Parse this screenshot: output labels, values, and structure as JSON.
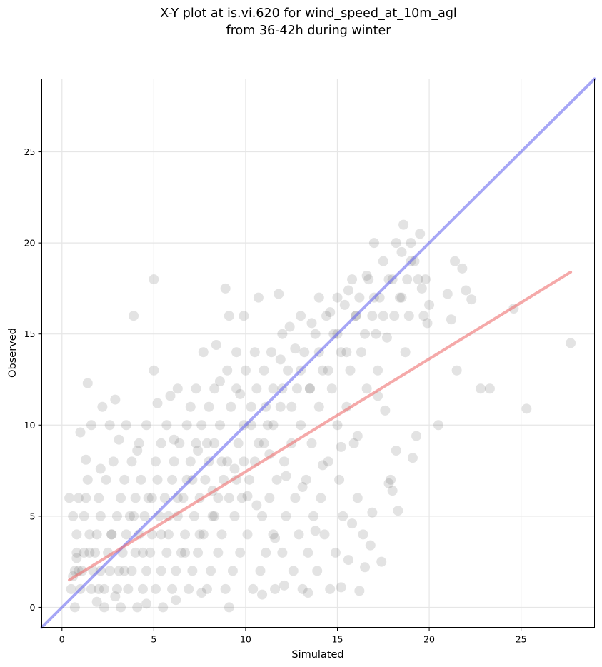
{
  "chart_data": {
    "type": "scatter",
    "title": "X-Y plot at is.vi.620 for wind_speed_at_10m_agl",
    "subtitle": "from 36-42h during winter",
    "xlabel": "Simulated",
    "ylabel": "Observed",
    "xlim": [
      -1.1,
      29
    ],
    "ylim": [
      -1.1,
      29
    ],
    "xticks": [
      0,
      5,
      10,
      15,
      20,
      25
    ],
    "yticks": [
      0,
      5,
      10,
      15,
      20,
      25
    ],
    "grid": true,
    "colors": {
      "points": "#444444",
      "identity_line": "#6a6af0",
      "fit_line": "#ee7070",
      "grid": "#e6e6e6"
    },
    "reference_lines": [
      {
        "kind": "identity",
        "x": [
          -1.1,
          29
        ],
        "y": [
          -1.1,
          29
        ]
      },
      {
        "kind": "fit",
        "x": [
          0.4,
          27.7
        ],
        "y": [
          1.5,
          18.4
        ]
      }
    ],
    "points": [
      [
        0.4,
        6
      ],
      [
        0.5,
        1
      ],
      [
        0.6,
        5
      ],
      [
        0.7,
        2
      ],
      [
        0.7,
        0
      ],
      [
        0.8,
        4
      ],
      [
        0.8,
        3
      ],
      [
        0.9,
        6
      ],
      [
        1.0,
        1
      ],
      [
        1.0,
        9.6
      ],
      [
        1.1,
        2
      ],
      [
        1.2,
        3
      ],
      [
        1.2,
        5
      ],
      [
        1.3,
        6
      ],
      [
        1.4,
        7
      ],
      [
        1.4,
        12.3
      ],
      [
        1.5,
        4
      ],
      [
        1.6,
        1
      ],
      [
        1.6,
        10
      ],
      [
        1.7,
        2
      ],
      [
        1.8,
        3
      ],
      [
        1.9,
        4
      ],
      [
        2.0,
        6
      ],
      [
        2.1,
        2
      ],
      [
        2.1,
        5
      ],
      [
        2.2,
        11
      ],
      [
        2.3,
        1
      ],
      [
        2.3,
        0
      ],
      [
        2.4,
        7
      ],
      [
        2.5,
        3
      ],
      [
        2.6,
        2
      ],
      [
        2.6,
        10
      ],
      [
        2.7,
        4
      ],
      [
        2.8,
        8
      ],
      [
        2.9,
        11.4
      ],
      [
        3.0,
        1
      ],
      [
        3.0,
        5
      ],
      [
        3.1,
        2
      ],
      [
        3.2,
        6
      ],
      [
        3.2,
        0
      ],
      [
        3.3,
        3
      ],
      [
        3.4,
        7
      ],
      [
        3.5,
        4
      ],
      [
        3.5,
        10
      ],
      [
        3.6,
        1
      ],
      [
        3.7,
        5
      ],
      [
        3.8,
        2
      ],
      [
        3.8,
        8
      ],
      [
        3.9,
        16
      ],
      [
        4.0,
        3
      ],
      [
        4.0,
        6
      ],
      [
        4.1,
        0
      ],
      [
        4.2,
        9
      ],
      [
        4.2,
        4
      ],
      [
        4.3,
        7
      ],
      [
        4.4,
        1
      ],
      [
        4.5,
        5
      ],
      [
        4.6,
        2
      ],
      [
        4.6,
        10
      ],
      [
        4.7,
        6
      ],
      [
        4.8,
        3
      ],
      [
        4.9,
        4
      ],
      [
        5.0,
        18
      ],
      [
        5.0,
        13
      ],
      [
        5.1,
        8
      ],
      [
        5.1,
        1
      ],
      [
        5.2,
        7
      ],
      [
        5.3,
        5
      ],
      [
        5.4,
        2
      ],
      [
        5.4,
        9
      ],
      [
        5.5,
        0
      ],
      [
        5.6,
        6
      ],
      [
        5.7,
        3
      ],
      [
        5.7,
        10
      ],
      [
        5.8,
        4
      ],
      [
        5.9,
        11.6
      ],
      [
        6.0,
        7
      ],
      [
        6.0,
        1
      ],
      [
        6.1,
        8
      ],
      [
        6.2,
        2
      ],
      [
        6.3,
        5
      ],
      [
        6.3,
        12
      ],
      [
        6.4,
        9
      ],
      [
        6.5,
        3
      ],
      [
        6.6,
        6
      ],
      [
        6.7,
        4
      ],
      [
        6.8,
        10
      ],
      [
        6.8,
        7
      ],
      [
        6.9,
        1
      ],
      [
        7.0,
        8
      ],
      [
        7.0,
        11
      ],
      [
        7.1,
        2
      ],
      [
        7.2,
        5
      ],
      [
        7.3,
        9
      ],
      [
        7.3,
        12
      ],
      [
        7.4,
        3
      ],
      [
        7.5,
        6
      ],
      [
        7.6,
        10
      ],
      [
        7.7,
        4
      ],
      [
        7.7,
        14
      ],
      [
        7.8,
        7
      ],
      [
        7.9,
        1
      ],
      [
        8.0,
        8
      ],
      [
        8.0,
        11
      ],
      [
        8.1,
        2
      ],
      [
        8.2,
        5
      ],
      [
        8.3,
        12
      ],
      [
        8.3,
        9
      ],
      [
        8.4,
        14.4
      ],
      [
        8.5,
        3
      ],
      [
        8.5,
        6
      ],
      [
        8.6,
        10
      ],
      [
        8.7,
        4
      ],
      [
        8.8,
        7
      ],
      [
        8.9,
        17.5
      ],
      [
        8.9,
        1
      ],
      [
        9.0,
        13
      ],
      [
        9.0,
        8
      ],
      [
        9.1,
        16
      ],
      [
        9.1,
        0
      ],
      [
        9.2,
        11
      ],
      [
        9.3,
        2
      ],
      [
        9.4,
        5
      ],
      [
        9.5,
        12
      ],
      [
        9.5,
        14
      ],
      [
        9.6,
        9
      ],
      [
        9.7,
        3
      ],
      [
        9.8,
        6
      ],
      [
        9.9,
        16
      ],
      [
        9.9,
        10
      ],
      [
        10.0,
        13
      ],
      [
        10.1,
        4
      ],
      [
        10.2,
        7
      ],
      [
        10.3,
        11
      ],
      [
        10.4,
        1
      ],
      [
        10.5,
        14
      ],
      [
        10.5,
        8
      ],
      [
        10.6,
        12
      ],
      [
        10.7,
        17
      ],
      [
        10.8,
        2
      ],
      [
        10.9,
        5
      ],
      [
        11.0,
        13
      ],
      [
        11.0,
        9
      ],
      [
        11.1,
        3
      ],
      [
        11.2,
        10
      ],
      [
        11.3,
        6
      ],
      [
        11.4,
        14
      ],
      [
        11.5,
        4
      ],
      [
        11.5,
        12
      ],
      [
        11.6,
        1
      ],
      [
        11.7,
        7
      ],
      [
        11.8,
        17.2
      ],
      [
        11.9,
        11
      ],
      [
        12.0,
        15
      ],
      [
        12.0,
        3
      ],
      [
        12.1,
        8
      ],
      [
        12.2,
        5
      ],
      [
        12.3,
        13
      ],
      [
        12.4,
        15.4
      ],
      [
        12.5,
        9
      ],
      [
        12.6,
        2
      ],
      [
        12.7,
        6
      ],
      [
        12.8,
        12
      ],
      [
        12.9,
        4
      ],
      [
        13.0,
        16
      ],
      [
        13.0,
        10
      ],
      [
        13.1,
        1
      ],
      [
        13.2,
        14
      ],
      [
        13.3,
        7
      ],
      [
        13.4,
        3
      ],
      [
        13.5,
        12
      ],
      [
        13.6,
        9
      ],
      [
        13.7,
        5
      ],
      [
        13.8,
        15
      ],
      [
        13.9,
        2
      ],
      [
        14.0,
        17
      ],
      [
        14.0,
        11
      ],
      [
        14.1,
        6
      ],
      [
        14.2,
        13
      ],
      [
        14.3,
        4
      ],
      [
        14.4,
        16
      ],
      [
        14.5,
        8
      ],
      [
        14.6,
        1
      ],
      [
        14.7,
        12
      ],
      [
        14.8,
        15
      ],
      [
        14.9,
        3
      ],
      [
        15.0,
        10
      ],
      [
        15.0,
        17
      ],
      [
        15.1,
        7
      ],
      [
        15.2,
        14
      ],
      [
        15.3,
        5
      ],
      [
        15.4,
        16.6
      ],
      [
        15.5,
        11
      ],
      [
        15.6,
        2.6
      ],
      [
        15.7,
        13
      ],
      [
        15.8,
        18
      ],
      [
        15.9,
        9
      ],
      [
        16.0,
        16
      ],
      [
        16.1,
        6
      ],
      [
        16.2,
        17
      ],
      [
        16.3,
        14
      ],
      [
        16.4,
        4
      ],
      [
        16.5,
        2.2
      ],
      [
        16.6,
        12
      ],
      [
        16.7,
        18
      ],
      [
        16.8,
        3.4
      ],
      [
        16.9,
        16
      ],
      [
        17.0,
        20
      ],
      [
        17.1,
        15
      ],
      [
        17.2,
        13
      ],
      [
        17.3,
        17
      ],
      [
        17.4,
        2.5
      ],
      [
        17.5,
        19
      ],
      [
        17.6,
        10.8
      ],
      [
        17.7,
        14.8
      ],
      [
        17.8,
        18
      ],
      [
        17.9,
        7
      ],
      [
        18.0,
        6.4
      ],
      [
        18.1,
        16
      ],
      [
        18.2,
        20
      ],
      [
        18.3,
        5.3
      ],
      [
        18.4,
        17
      ],
      [
        18.5,
        19.5
      ],
      [
        18.6,
        21
      ],
      [
        18.7,
        14
      ],
      [
        18.8,
        18
      ],
      [
        18.9,
        16
      ],
      [
        19.0,
        20
      ],
      [
        19.1,
        8.2
      ],
      [
        19.2,
        19
      ],
      [
        19.3,
        9.4
      ],
      [
        19.4,
        18
      ],
      [
        19.5,
        20.5
      ],
      [
        19.6,
        17.5
      ],
      [
        19.7,
        16
      ],
      [
        19.8,
        18
      ],
      [
        19.9,
        15.6
      ],
      [
        20.0,
        16.6
      ],
      [
        20.5,
        10
      ],
      [
        21.0,
        17.2
      ],
      [
        21.2,
        15.8
      ],
      [
        21.4,
        19
      ],
      [
        21.5,
        13
      ],
      [
        21.8,
        18.6
      ],
      [
        22.0,
        17.4
      ],
      [
        22.3,
        16.9
      ],
      [
        22.8,
        12
      ],
      [
        23.3,
        12
      ],
      [
        24.6,
        16.4
      ],
      [
        25.3,
        10.9
      ],
      [
        27.7,
        14.5
      ],
      [
        0.9,
        2
      ],
      [
        1.5,
        3
      ],
      [
        2.0,
        1
      ],
      [
        2.7,
        4
      ],
      [
        3.4,
        2
      ],
      [
        3.9,
        5
      ],
      [
        4.4,
        3
      ],
      [
        4.9,
        6
      ],
      [
        5.4,
        4
      ],
      [
        5.8,
        5
      ],
      [
        6.3,
        6
      ],
      [
        6.7,
        3
      ],
      [
        7.1,
        7
      ],
      [
        7.5,
        4
      ],
      [
        7.9,
        9
      ],
      [
        8.3,
        5
      ],
      [
        8.7,
        8
      ],
      [
        9.1,
        6
      ],
      [
        9.5,
        7
      ],
      [
        9.9,
        8
      ],
      [
        10.3,
        10
      ],
      [
        10.7,
        9
      ],
      [
        11.1,
        11
      ],
      [
        11.5,
        10
      ],
      [
        12.0,
        12
      ],
      [
        12.5,
        11
      ],
      [
        13.0,
        13
      ],
      [
        13.5,
        12
      ],
      [
        14.0,
        14
      ],
      [
        14.5,
        13
      ],
      [
        15.0,
        15
      ],
      [
        15.5,
        14
      ],
      [
        16.0,
        16
      ],
      [
        16.5,
        15
      ],
      [
        17.0,
        17
      ],
      [
        17.5,
        16
      ],
      [
        18.0,
        18
      ],
      [
        18.5,
        17
      ],
      [
        19.0,
        19
      ],
      [
        6.1,
        9.2
      ],
      [
        7.4,
        8.6
      ],
      [
        8.2,
        6.4
      ],
      [
        9.4,
        7.6
      ],
      [
        10.6,
        5.6
      ],
      [
        11.3,
        8.4
      ],
      [
        12.2,
        7.2
      ],
      [
        13.1,
        6.6
      ],
      [
        14.2,
        7.8
      ],
      [
        15.2,
        8.8
      ],
      [
        16.1,
        9.4
      ],
      [
        17.2,
        11.6
      ],
      [
        10.1,
        6.1
      ],
      [
        9.7,
        11.7
      ],
      [
        8.6,
        12.4
      ],
      [
        11.9,
        13.6
      ],
      [
        12.7,
        14.2
      ],
      [
        13.6,
        15.6
      ],
      [
        14.6,
        16.2
      ],
      [
        15.6,
        17.4
      ],
      [
        16.6,
        18.2
      ],
      [
        5.2,
        11.2
      ],
      [
        4.1,
        8.6
      ],
      [
        3.1,
        9.2
      ],
      [
        2.1,
        7.6
      ],
      [
        1.3,
        8.1
      ],
      [
        0.8,
        2.7
      ],
      [
        0.6,
        1.7
      ],
      [
        1.9,
        0.3
      ],
      [
        2.9,
        0.6
      ],
      [
        4.6,
        0.2
      ],
      [
        6.2,
        0.4
      ],
      [
        7.6,
        0.8
      ],
      [
        10.9,
        0.7
      ],
      [
        12.1,
        1.2
      ],
      [
        13.4,
        0.8
      ],
      [
        15.2,
        1.1
      ],
      [
        16.2,
        0.9
      ],
      [
        11.6,
        3.8
      ],
      [
        13.8,
        4.2
      ],
      [
        15.8,
        4.6
      ],
      [
        16.9,
        5.2
      ],
      [
        17.8,
        6.8
      ],
      [
        18.2,
        8.6
      ]
    ]
  }
}
